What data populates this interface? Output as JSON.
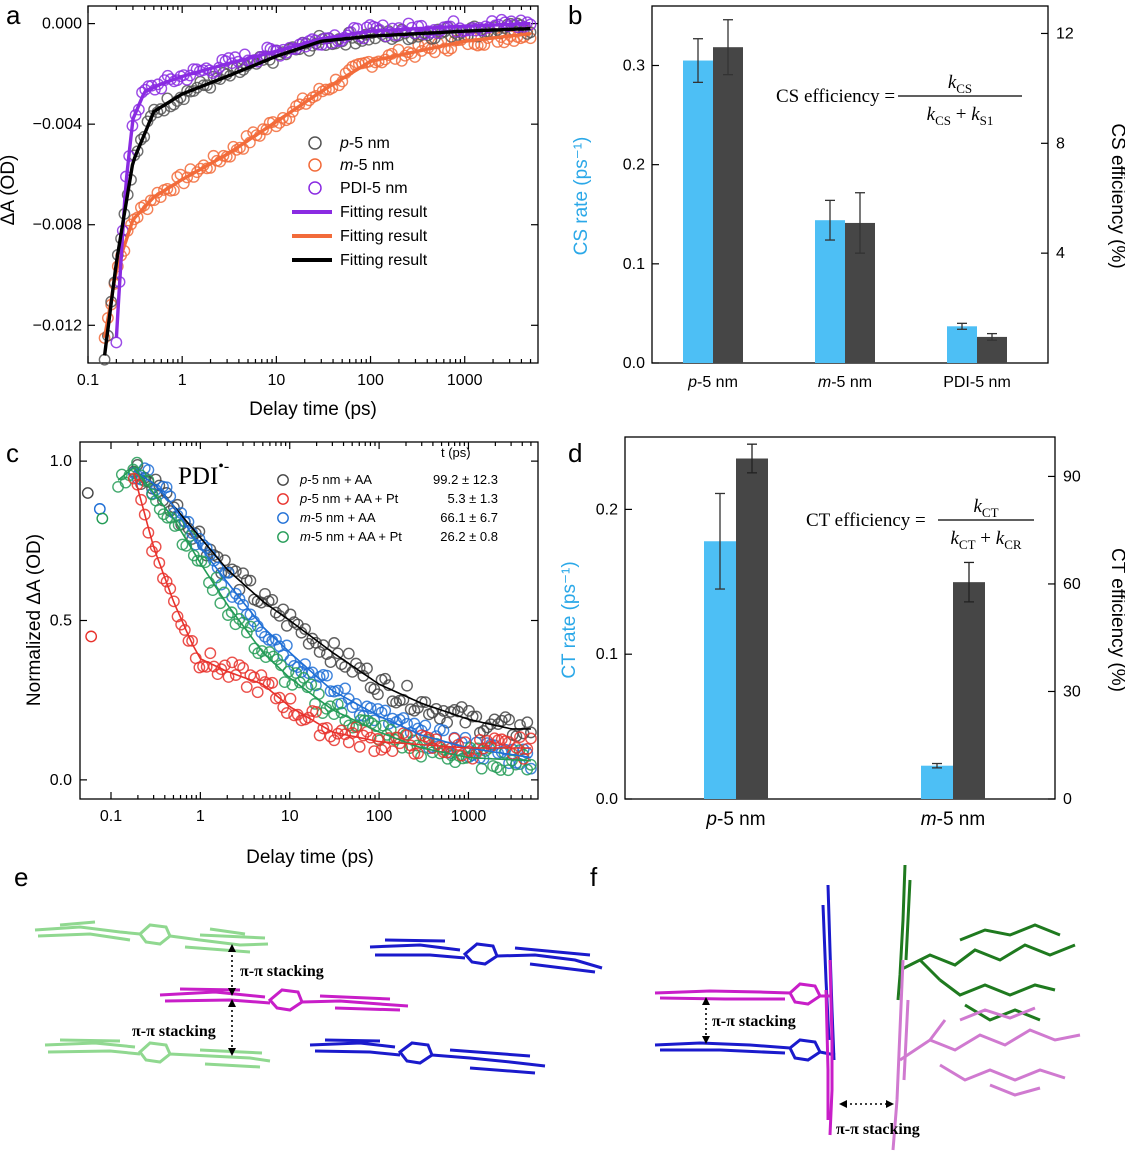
{
  "panels": {
    "a": "a",
    "b": "b",
    "c": "c",
    "d": "d",
    "e": "e",
    "f": "f"
  },
  "colors": {
    "black": "#444444",
    "orange": "#f26b3a",
    "purple": "#8a2be2",
    "blue_bar": "#4dbff5",
    "dark_bar": "#464646",
    "red": "#e8312b",
    "blue": "#1f6fd6",
    "green": "#239b56",
    "magenta": "#c81ec8",
    "navy": "#1a1acc",
    "lightgreen": "#90d890",
    "darkgreen": "#1f7a1f",
    "pink": "#d07ad0"
  },
  "chart_data": [
    {
      "id": "a",
      "type": "scatter",
      "xlabel": "Delay time (ps)",
      "ylabel": "ΔA (OD)",
      "xscale": "log",
      "xlim": [
        0.1,
        6000
      ],
      "ylim": [
        -0.0135,
        0.0007
      ],
      "xticks": [
        "0.1",
        "1",
        "10",
        "100",
        "1000"
      ],
      "yticks": [
        "0.000",
        "−0.004",
        "−0.008",
        "−0.012"
      ],
      "legend_position": "center-right",
      "legend": [
        {
          "label_italic": "p",
          "label_rest": "-5 nm",
          "marker": "circle",
          "color": "#555555"
        },
        {
          "label_italic": "m",
          "label_rest": "-5 nm",
          "marker": "circle",
          "color": "#f26b3a"
        },
        {
          "label_italic": "",
          "label_rest": "PDI-5 nm",
          "marker": "circle",
          "color": "#8a2be2"
        },
        {
          "label_italic": "",
          "label_rest": "Fitting result",
          "marker": "line",
          "color": "#8a2be2"
        },
        {
          "label_italic": "",
          "label_rest": "Fitting result",
          "marker": "line",
          "color": "#f26b3a"
        },
        {
          "label_italic": "",
          "label_rest": "Fitting result",
          "marker": "line",
          "color": "#000000"
        }
      ],
      "series": [
        {
          "name": "p-5 nm",
          "color": "#555555",
          "x": [
            0.15,
            0.2,
            0.3,
            0.5,
            1,
            3,
            10,
            30,
            100,
            1000,
            5000
          ],
          "y": [
            -0.0132,
            -0.0095,
            -0.0055,
            -0.0035,
            -0.0028,
            -0.0021,
            -0.0013,
            -0.0007,
            -0.0005,
            -0.0003,
            -0.0002
          ]
        },
        {
          "name": "m-5 nm",
          "color": "#f26b3a",
          "x": [
            0.15,
            0.2,
            0.3,
            0.5,
            1,
            3,
            10,
            30,
            100,
            1000,
            5000
          ],
          "y": [
            -0.0125,
            -0.0098,
            -0.0078,
            -0.0069,
            -0.0062,
            -0.0052,
            -0.0039,
            -0.0027,
            -0.0015,
            -0.0007,
            -0.0004
          ]
        },
        {
          "name": "PDI-5 nm",
          "color": "#8a2be2",
          "x": [
            0.2,
            0.25,
            0.3,
            0.4,
            0.6,
            1,
            3,
            10,
            30,
            100,
            1000,
            5000
          ],
          "y": [
            -0.0125,
            -0.0065,
            -0.0038,
            -0.0027,
            -0.0024,
            -0.0021,
            -0.0016,
            -0.0011,
            -0.0006,
            -0.0003,
            -0.0001,
            0.0
          ]
        }
      ]
    },
    {
      "id": "b",
      "type": "bar",
      "categories_italic": [
        "p",
        "m",
        ""
      ],
      "categories_rest": [
        "-5 nm",
        "-5 nm",
        "PDI-5 nm"
      ],
      "ylabel_left": "CS rate (ps⁻¹)",
      "ylabel_right": "CS efficiency (%)",
      "ylim_left": [
        0,
        0.36
      ],
      "ylim_right": [
        0,
        13
      ],
      "yticks_left": [
        "0.0",
        "0.1",
        "0.2",
        "0.3"
      ],
      "yticks_right": [
        "4",
        "8",
        "12"
      ],
      "equation": {
        "lhs": "CS efficiency =",
        "num": "k",
        "num_sub": "CS",
        "den1": "k",
        "den1_sub": "CS",
        "den2": "k",
        "den2_sub": "S1"
      },
      "series": [
        {
          "name": "CS rate",
          "axis": "left",
          "color": "#4dbff5",
          "values": [
            0.305,
            0.144,
            0.037
          ],
          "errors": [
            0.022,
            0.02,
            0.003
          ]
        },
        {
          "name": "CS efficiency",
          "axis": "right",
          "color": "#464646",
          "values": [
            11.5,
            5.1,
            0.95
          ],
          "errors": [
            1.0,
            1.1,
            0.12
          ]
        }
      ]
    },
    {
      "id": "c",
      "type": "scatter",
      "xlabel": "Delay time (ps)",
      "ylabel": "Normalized ΔA (OD)",
      "species": "PDI•-",
      "xscale": "log",
      "xlim": [
        0.045,
        6000
      ],
      "ylim": [
        -0.06,
        1.06
      ],
      "xticks": [
        "0.1",
        "1",
        "10",
        "100",
        "1000"
      ],
      "yticks": [
        "0.0",
        "0.5",
        "1.0"
      ],
      "legend_header": "t (ps)",
      "legend_position": "top-right",
      "legend": [
        {
          "label_italic": "p",
          "label_rest": "-5 nm + AA",
          "value": "99.2 ± 12.3",
          "color": "#444444"
        },
        {
          "label_italic": "p",
          "label_rest": "-5 nm + AA + Pt",
          "value": "5.3 ± 1.3",
          "color": "#e8312b"
        },
        {
          "label_italic": "m",
          "label_rest": "-5 nm + AA",
          "value": "66.1 ± 6.7",
          "color": "#1f6fd6"
        },
        {
          "label_italic": "m",
          "label_rest": "-5 nm + AA + Pt",
          "value": "26.2 ± 0.8",
          "color": "#239b56"
        }
      ],
      "series": [
        {
          "name": "p-5 nm + AA",
          "color": "#444444",
          "x": [
            0.055,
            0.18,
            0.3,
            0.5,
            1,
            2,
            5,
            10,
            30,
            100,
            300,
            1000,
            3000,
            5000
          ],
          "y": [
            0.9,
            0.97,
            0.93,
            0.86,
            0.76,
            0.66,
            0.56,
            0.5,
            0.4,
            0.3,
            0.24,
            0.19,
            0.16,
            0.16
          ]
        },
        {
          "name": "p-5 nm + AA + Pt",
          "color": "#e8312b",
          "x": [
            0.06,
            0.18,
            0.3,
            0.5,
            0.8,
            1,
            2,
            5,
            10,
            30,
            100,
            1000,
            5000
          ],
          "y": [
            0.45,
            0.96,
            0.73,
            0.56,
            0.43,
            0.38,
            0.34,
            0.3,
            0.23,
            0.15,
            0.12,
            0.1,
            0.1
          ]
        },
        {
          "name": "m-5 nm + AA",
          "color": "#1f6fd6",
          "x": [
            0.075,
            0.18,
            0.3,
            0.5,
            1,
            2,
            5,
            10,
            30,
            100,
            300,
            1000,
            5000
          ],
          "y": [
            0.85,
            0.97,
            0.93,
            0.86,
            0.73,
            0.62,
            0.48,
            0.4,
            0.28,
            0.2,
            0.14,
            0.1,
            0.07
          ]
        },
        {
          "name": "m-5 nm + AA + Pt",
          "color": "#239b56",
          "x": [
            0.08,
            0.12,
            0.18,
            0.3,
            0.5,
            1,
            2,
            5,
            10,
            30,
            100,
            300,
            1000,
            5000
          ],
          "y": [
            0.82,
            0.94,
            0.98,
            0.9,
            0.82,
            0.68,
            0.55,
            0.4,
            0.32,
            0.22,
            0.15,
            0.1,
            0.07,
            0.06
          ]
        }
      ]
    },
    {
      "id": "d",
      "type": "bar",
      "categories_italic": [
        "p",
        "m"
      ],
      "categories_rest": [
        "-5 nm",
        "-5 nm"
      ],
      "ylabel_left": "CT rate (ps⁻¹)",
      "ylabel_right": "CT efficiency (%)",
      "ylim_left": [
        0,
        0.25
      ],
      "ylim_right": [
        0,
        101
      ],
      "yticks_left": [
        "0.0",
        "0.1",
        "0.2"
      ],
      "yticks_right": [
        "0",
        "30",
        "60",
        "90"
      ],
      "equation": {
        "lhs": "CT efficiency =",
        "num": "k",
        "num_sub": "CT",
        "den1": "k",
        "den1_sub": "CT",
        "den2": "k",
        "den2_sub": "CR"
      },
      "series": [
        {
          "name": "CT rate",
          "axis": "left",
          "color": "#4dbff5",
          "values": [
            0.178,
            0.023
          ],
          "errors": [
            0.033,
            0.0015
          ]
        },
        {
          "name": "CT efficiency",
          "axis": "right",
          "color": "#464646",
          "values": [
            95,
            60.5
          ],
          "errors": [
            4,
            5.5
          ]
        }
      ]
    }
  ],
  "structures": {
    "e_label_1": "π-π stacking",
    "e_label_2": "π-π stacking",
    "f_label_1": "π-π stacking",
    "f_label_2": "π-π stacking"
  }
}
